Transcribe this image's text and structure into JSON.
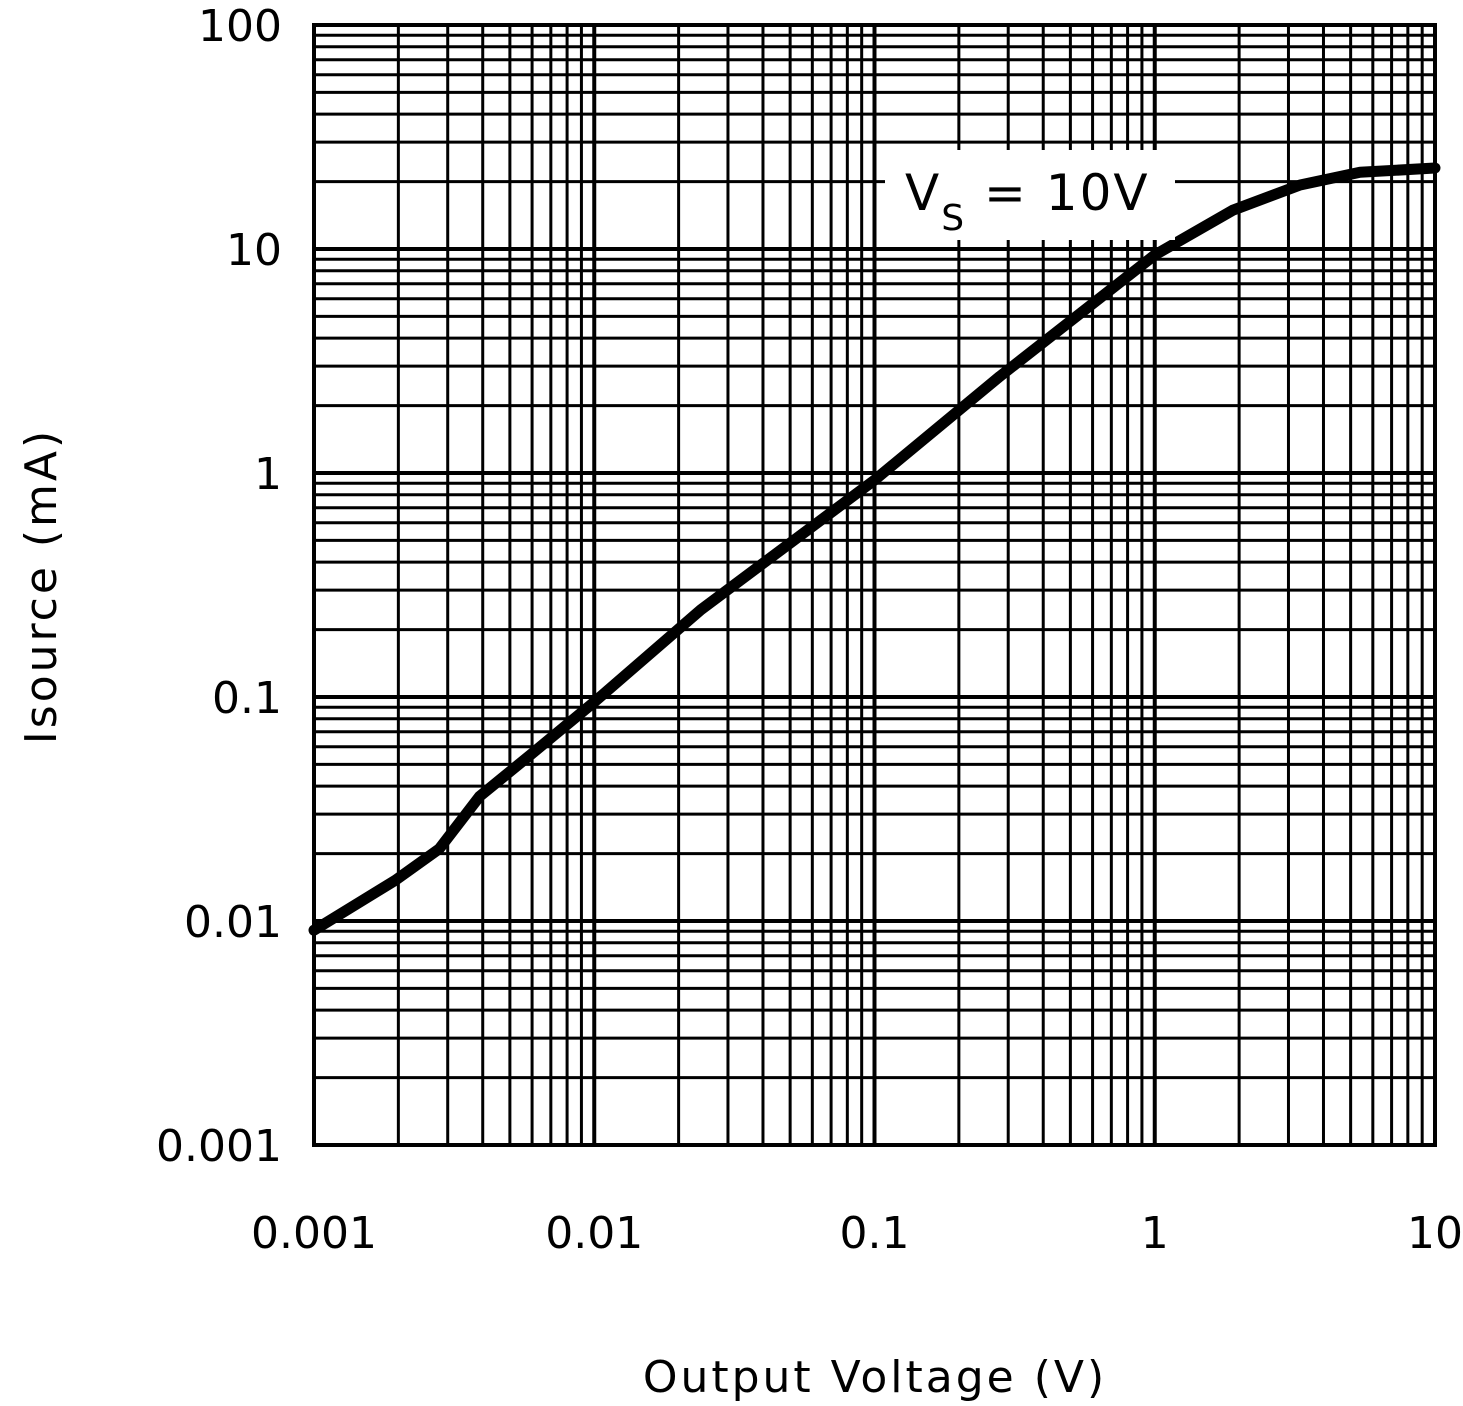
{
  "chart_data": {
    "type": "line",
    "xlabel": "Output Voltage (V)",
    "ylabel": "Isource (mA)",
    "xscale": "log",
    "yscale": "log",
    "xlim": [
      0.001,
      10
    ],
    "ylim": [
      0.001,
      100
    ],
    "grid": true,
    "xticks": [
      "0.001",
      "0.01",
      "0.1",
      "1",
      "10"
    ],
    "yticks": [
      "0.001",
      "0.01",
      "0.1",
      "1",
      "10",
      "100"
    ],
    "annotation": {
      "main": "V",
      "sub": "S",
      "rest": " = 10V"
    },
    "line_color": "#000000",
    "series": [
      {
        "x": [
          0.001,
          0.00195,
          0.0028,
          0.0039,
          0.0059,
          0.01,
          0.024,
          0.1,
          0.28,
          1,
          1.9,
          3.3,
          5.4,
          10
        ],
        "y": [
          0.0091,
          0.0152,
          0.021,
          0.036,
          0.055,
          0.095,
          0.245,
          0.93,
          2.7,
          9.4,
          14.9,
          19.3,
          22,
          23
        ]
      }
    ]
  }
}
